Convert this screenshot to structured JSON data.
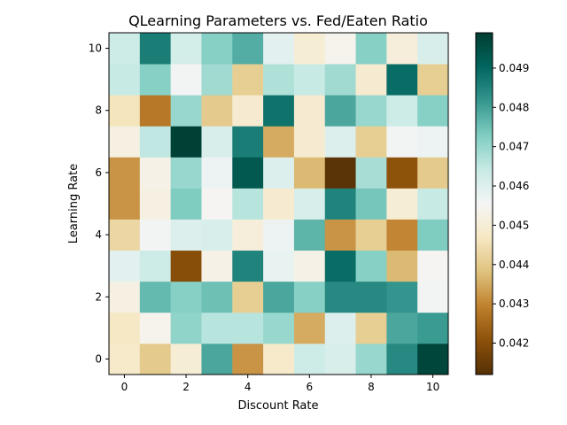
{
  "chart_data": {
    "type": "heatmap",
    "title": "QLearning Parameters vs. Fed/Eaten Ratio",
    "xlabel": "Discount Rate",
    "ylabel": "Learning Rate",
    "x_categories": [
      0,
      1,
      2,
      3,
      4,
      5,
      6,
      7,
      8,
      9,
      10
    ],
    "y_categories": [
      0,
      1,
      2,
      3,
      4,
      5,
      6,
      7,
      8,
      9,
      10
    ],
    "xticks": [
      "0",
      "2",
      "4",
      "6",
      "8",
      "10"
    ],
    "yticks": [
      "0",
      "2",
      "4",
      "6",
      "8",
      "10"
    ],
    "colormap": "BrBG",
    "vmin": 0.0412,
    "vmax": 0.0499,
    "colorbar_ticks": [
      "0.042",
      "0.043",
      "0.044",
      "0.045",
      "0.046",
      "0.047",
      "0.048",
      "0.049"
    ],
    "colorbar_tick_values": [
      0.042,
      0.043,
      0.044,
      0.045,
      0.046,
      0.047,
      0.048,
      0.049
    ],
    "grid": false,
    "values": [
      [
        0.0448,
        0.044,
        0.045,
        0.0479,
        0.0432,
        0.0448,
        0.0463,
        0.0461,
        0.047,
        0.0484,
        0.0497
      ],
      [
        0.0447,
        0.0454,
        0.0471,
        0.0466,
        0.0466,
        0.047,
        0.0435,
        0.046,
        0.0441,
        0.0479,
        0.0481
      ],
      [
        0.0452,
        0.0476,
        0.0472,
        0.0475,
        0.0441,
        0.0479,
        0.0472,
        0.0484,
        0.0484,
        0.0482,
        0.0456
      ],
      [
        0.0459,
        0.0463,
        0.042,
        0.0453,
        0.0485,
        0.0458,
        0.0453,
        0.0489,
        0.0472,
        0.0437,
        0.0455
      ],
      [
        0.0443,
        0.0456,
        0.046,
        0.0461,
        0.0451,
        0.0457,
        0.0477,
        0.0432,
        0.0441,
        0.043,
        0.0473
      ],
      [
        0.0432,
        0.0452,
        0.0473,
        0.0455,
        0.0466,
        0.0449,
        0.0461,
        0.0485,
        0.0474,
        0.045,
        0.0464
      ],
      [
        0.0432,
        0.0453,
        0.047,
        0.0457,
        0.0493,
        0.046,
        0.0437,
        0.0413,
        0.0468,
        0.0421,
        0.044
      ],
      [
        0.0452,
        0.0465,
        0.0498,
        0.0461,
        0.0486,
        0.0435,
        0.0449,
        0.046,
        0.0441,
        0.0456,
        0.0457
      ],
      [
        0.0446,
        0.0428,
        0.047,
        0.044,
        0.0449,
        0.0488,
        0.0449,
        0.0479,
        0.047,
        0.0463,
        0.0472
      ],
      [
        0.0464,
        0.0472,
        0.0456,
        0.0469,
        0.0441,
        0.0467,
        0.0464,
        0.0469,
        0.0449,
        0.0489,
        0.0441
      ],
      [
        0.0463,
        0.0486,
        0.0462,
        0.0472,
        0.0478,
        0.0459,
        0.045,
        0.0454,
        0.0472,
        0.0451,
        0.0461
      ]
    ]
  }
}
